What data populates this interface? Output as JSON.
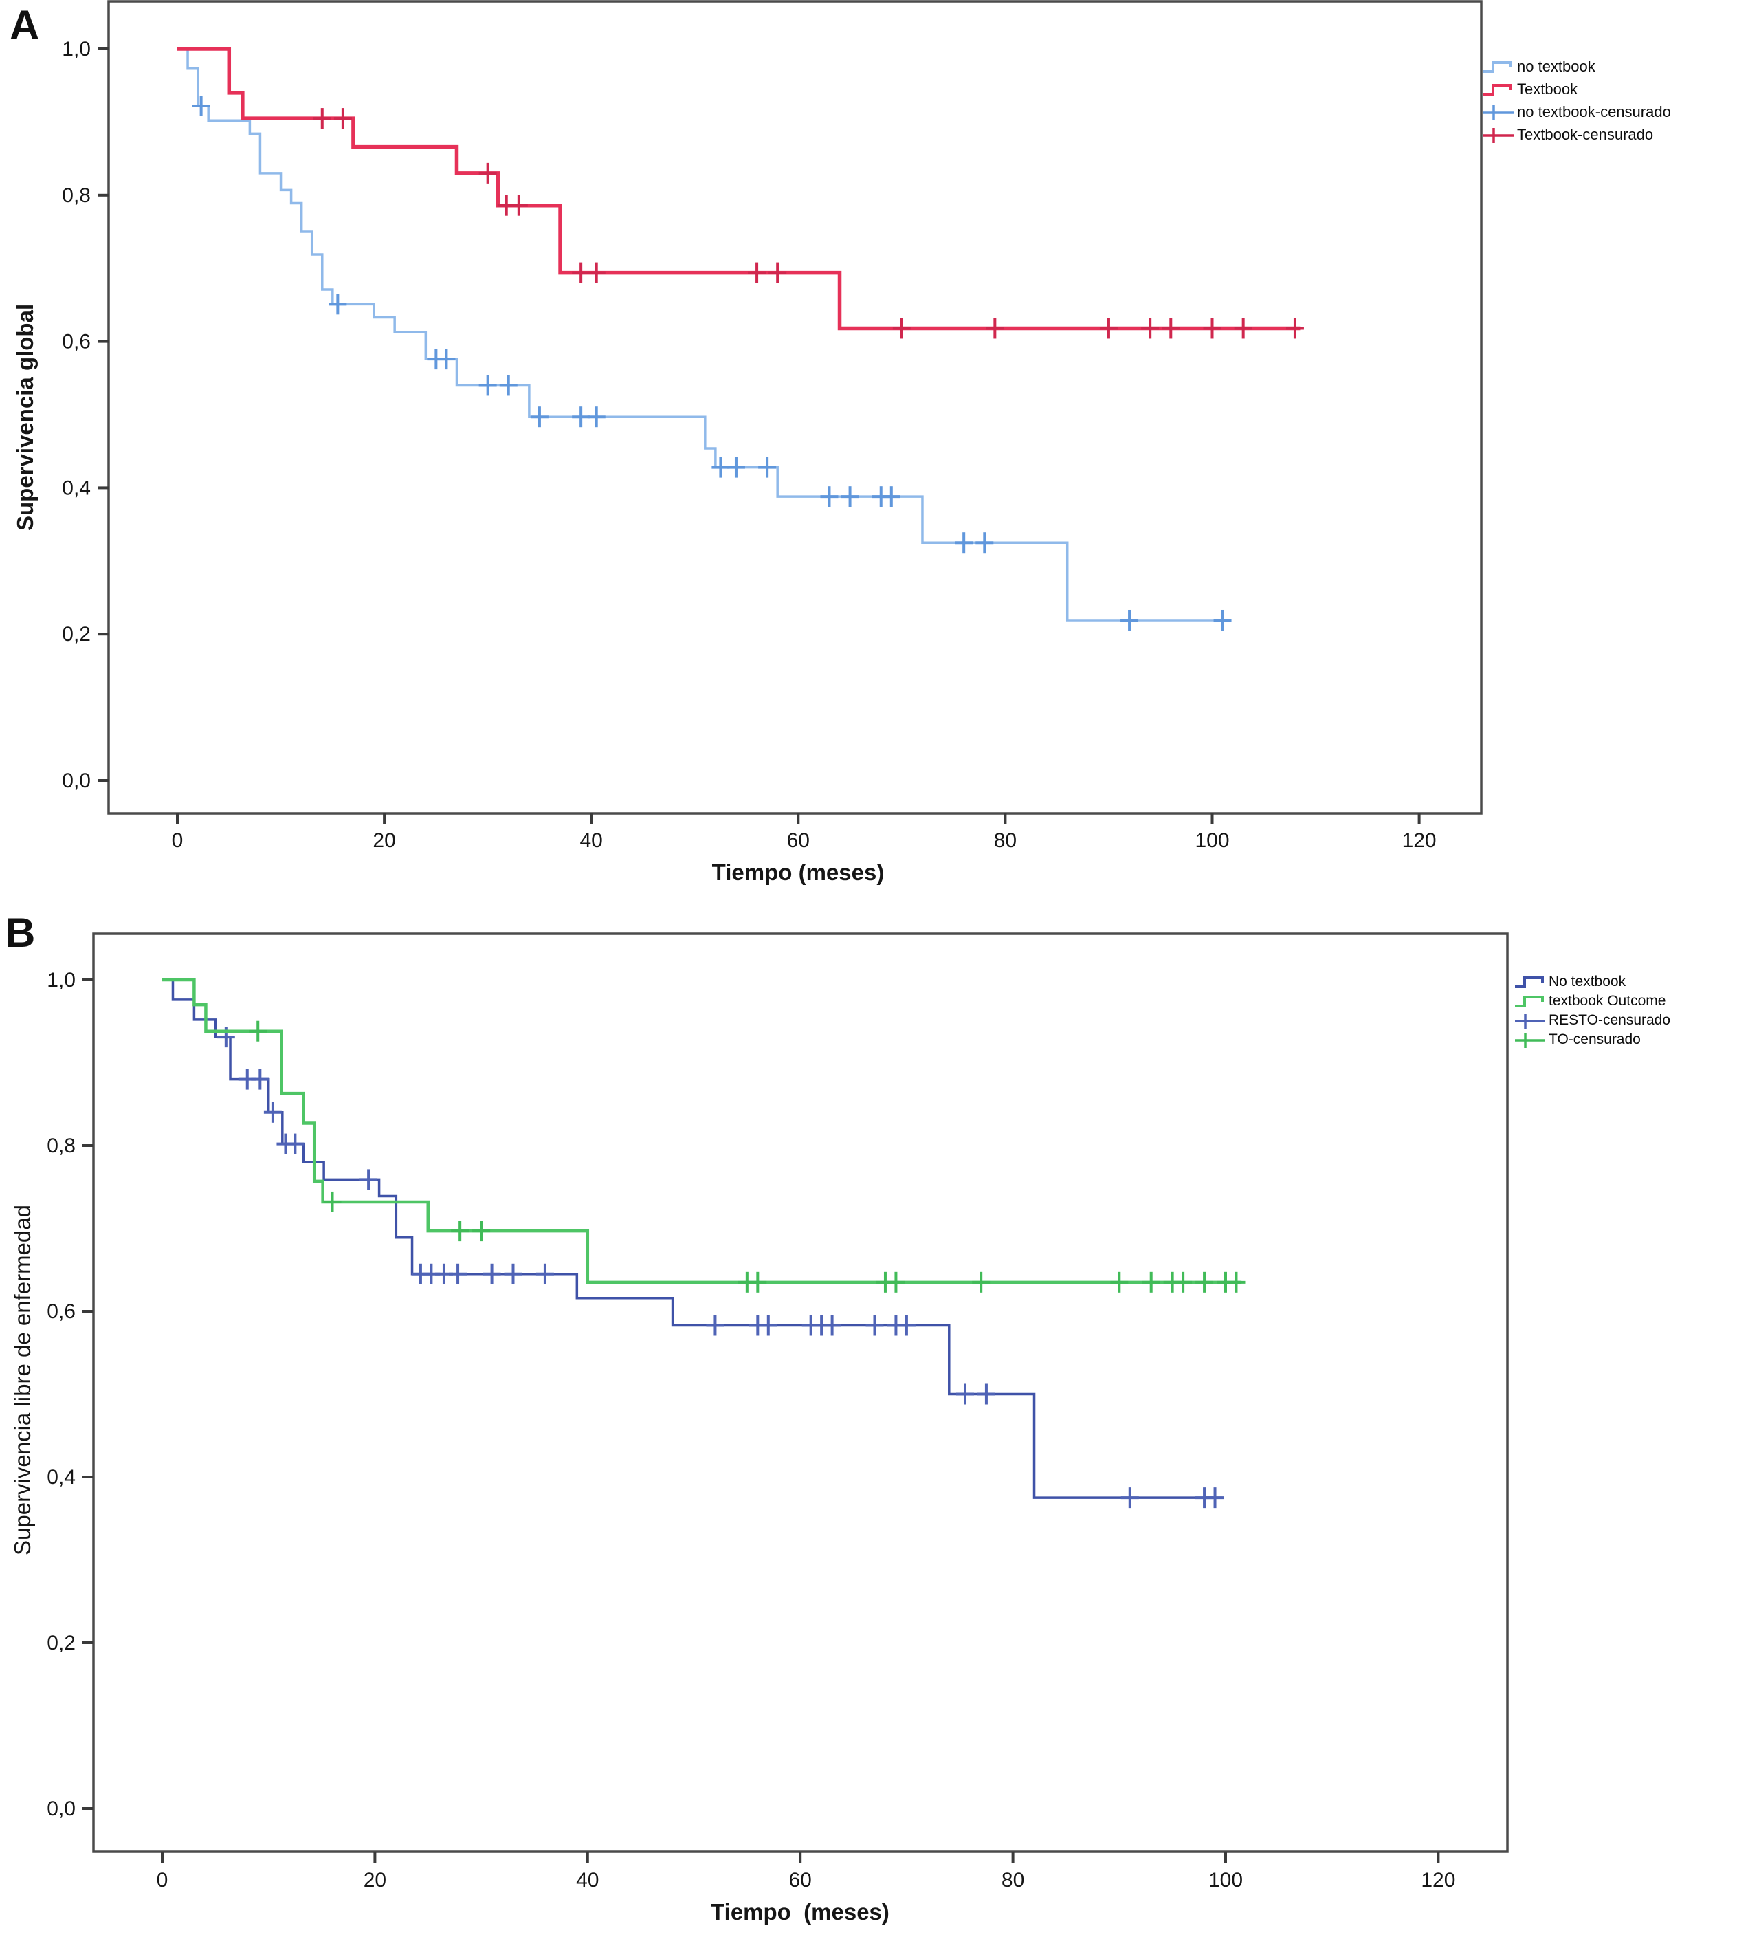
{
  "figure": {
    "background": "#ffffff"
  },
  "chart_data": [
    {
      "type": "line",
      "subtype": "kaplan-meier-step",
      "panel": "A",
      "title": "",
      "xlabel": "Tiempo (meses)",
      "ylabel": "Supervivencia global",
      "xticks": [
        "0",
        "20",
        "40",
        "60",
        "80",
        "100",
        "120"
      ],
      "yticks": [
        "1,0",
        "0,8",
        "0,6",
        "0,4",
        "0,2",
        "0,0"
      ],
      "xlim": [
        0,
        120
      ],
      "ylim": [
        0.0,
        1.0
      ],
      "grid": false,
      "legend_position": "outside-top-right",
      "series": [
        {
          "name": "no textbook",
          "color": "#8fb9ea",
          "censor_color": "#6097dc",
          "width": 3.5,
          "steps": [
            [
              0,
              1.0
            ],
            [
              1,
              0.973
            ],
            [
              2,
              0.922
            ],
            [
              3,
              0.902
            ],
            [
              7,
              0.884
            ],
            [
              8,
              0.83
            ],
            [
              10,
              0.807
            ],
            [
              11,
              0.789
            ],
            [
              12,
              0.75
            ],
            [
              13,
              0.719
            ],
            [
              14,
              0.671
            ],
            [
              15,
              0.651
            ],
            [
              19,
              0.633
            ],
            [
              21,
              0.613
            ],
            [
              24,
              0.576
            ],
            [
              27,
              0.54
            ],
            [
              34,
              0.497
            ],
            [
              51,
              0.454
            ],
            [
              52,
              0.428
            ],
            [
              58,
              0.388
            ],
            [
              72,
              0.325
            ],
            [
              86,
              0.219
            ]
          ],
          "end": 101,
          "censors": [
            2.3,
            15.5,
            25,
            26,
            30,
            32,
            35,
            39,
            40.5,
            52.5,
            54,
            57,
            63,
            65,
            68,
            69,
            76,
            78,
            92,
            101
          ]
        },
        {
          "name": "Textbook",
          "color": "#e63158",
          "censor_color": "#d0274e",
          "width": 5.5,
          "steps": [
            [
              0,
              1.0
            ],
            [
              5,
              0.94
            ],
            [
              6.3,
              0.905
            ],
            [
              17,
              0.866
            ],
            [
              27,
              0.83
            ],
            [
              31,
              0.786
            ],
            [
              37,
              0.694
            ],
            [
              64,
              0.618
            ]
          ],
          "end": 108.5,
          "censors": [
            14,
            16,
            30,
            31.8,
            33,
            39,
            40.5,
            56,
            58,
            70,
            79,
            90,
            94,
            96,
            100,
            103,
            108
          ]
        }
      ],
      "legend": [
        {
          "label": "no textbook",
          "type": "line",
          "color": "#8fb9ea"
        },
        {
          "label": "Textbook",
          "type": "line",
          "color": "#e63158"
        },
        {
          "label": "no textbook-censurado",
          "type": "censor",
          "color": "#6097dc"
        },
        {
          "label": "Textbook-censurado",
          "type": "censor",
          "color": "#d0274e"
        }
      ]
    },
    {
      "type": "line",
      "subtype": "kaplan-meier-step",
      "panel": "B",
      "title": "",
      "xlabel": "Tiempo  (meses)",
      "ylabel": "Supervivencia libre de enfermedad",
      "xticks": [
        "0",
        "20",
        "40",
        "60",
        "80",
        "100",
        "120"
      ],
      "yticks": [
        "1,0",
        "0,8",
        "0,6",
        "0,4",
        "0,2",
        "0,0"
      ],
      "xlim": [
        0,
        120
      ],
      "ylim": [
        0.0,
        1.0
      ],
      "grid": false,
      "legend_position": "outside-top-right",
      "series": [
        {
          "name": "No textbook",
          "color": "#3f52a8",
          "censor_color": "#4f63b6",
          "width": 3.5,
          "steps": [
            [
              0,
              1.0
            ],
            [
              1,
              0.976
            ],
            [
              3,
              0.952
            ],
            [
              5,
              0.931
            ],
            [
              6.4,
              0.88
            ],
            [
              10,
              0.84
            ],
            [
              11.3,
              0.802
            ],
            [
              13.3,
              0.78
            ],
            [
              15.2,
              0.759
            ],
            [
              20.4,
              0.739
            ],
            [
              22,
              0.689
            ],
            [
              23.5,
              0.645
            ],
            [
              39,
              0.616
            ],
            [
              48,
              0.583
            ],
            [
              74,
              0.5
            ],
            [
              82,
              0.375
            ]
          ],
          "end": 99.7,
          "censors": [
            6,
            8,
            9.2,
            10.4,
            11.6,
            12.5,
            19.4,
            24.3,
            25.3,
            26.5,
            27.8,
            31,
            33,
            36,
            52,
            56,
            57,
            61,
            62,
            63,
            67,
            69,
            70,
            75.5,
            77.5,
            91,
            98,
            99
          ]
        },
        {
          "name": "textbook Outcome",
          "color": "#4ec565",
          "censor_color": "#41bb58",
          "width": 4.5,
          "steps": [
            [
              0,
              1.0
            ],
            [
              3,
              0.97
            ],
            [
              4.1,
              0.938
            ],
            [
              11.2,
              0.863
            ],
            [
              13.3,
              0.827
            ],
            [
              14.3,
              0.757
            ],
            [
              15.1,
              0.732
            ],
            [
              25,
              0.697
            ],
            [
              40,
              0.635
            ]
          ],
          "end": 101.5,
          "censors": [
            9,
            16,
            28,
            30,
            55,
            56,
            68,
            69,
            77,
            90,
            93,
            95,
            96,
            98,
            100,
            101
          ]
        }
      ],
      "legend": [
        {
          "label": "No textbook",
          "type": "line",
          "color": "#3f52a8"
        },
        {
          "label": "textbook Outcome",
          "type": "line",
          "color": "#4ec565"
        },
        {
          "label": "RESTO-censurado",
          "type": "censor",
          "color": "#4f63b6"
        },
        {
          "label": "TO-censurado",
          "type": "censor",
          "color": "#41bb58"
        }
      ]
    }
  ]
}
